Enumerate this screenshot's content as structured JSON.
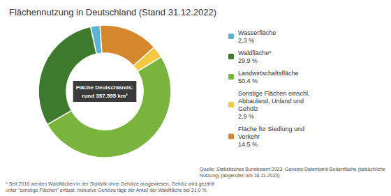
{
  "chart_data": {
    "type": "pie",
    "title": "Flächennutzung in Deutschland (Stand 31.12.2022)",
    "categories": [
      "Wasserfläche",
      "Waldfläche*",
      "Landwirtschaftsfläche",
      "Sonstige Flächen einschl.\nAbbauland, Unland und\nGehölz",
      "Fläche für Siedlung und\nVerkehr"
    ],
    "values": [
      2.3,
      29.9,
      50.4,
      2.9,
      14.5
    ],
    "value_labels": [
      "2,3 %",
      "29,9 %",
      "50,4 %",
      "2,9 %",
      "14,5 %"
    ],
    "colors": [
      "#5ab4d5",
      "#3d7a2d",
      "#79b53c",
      "#f5c842",
      "#d4882b"
    ],
    "legend": "right",
    "annotations": [
      "Fläche Deutschlands:\nrund 357.595 km²",
      "* Seit 2016 werden Waldflächen in der Statistik ohne Gehölze ausgewiesen. Gehölz wird gezählt\nunter \"sonstige Flächen\" erfasst. Inklusive Gehölze läge der Anteil der Waldfläche bei 31,0 %.",
      "Quelle: Statistisches Bundesamt 2023, Genesis-Datenbank Bodenfläche (tatsächliche\nNutzung) (abgerufen am 16.11.2023)"
    ]
  }
}
